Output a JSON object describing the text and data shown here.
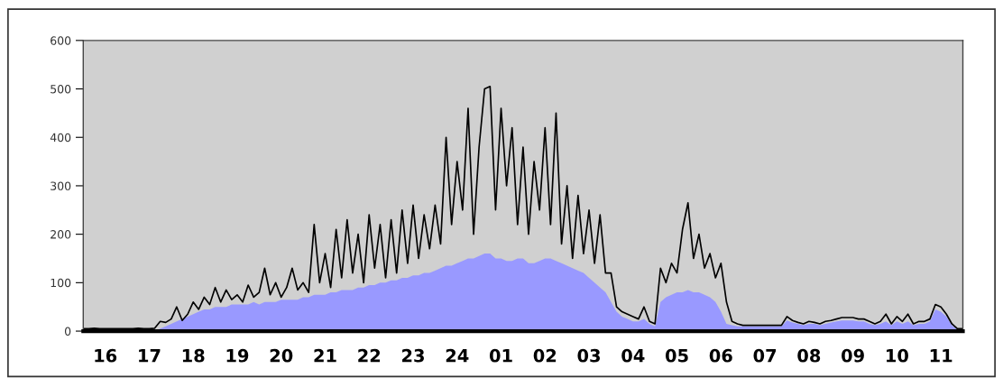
{
  "chart_data": {
    "type": "line",
    "categories": [
      null,
      null,
      null,
      null,
      "16",
      null,
      null,
      null,
      null,
      null,
      null,
      null,
      "17",
      null,
      null,
      null,
      null,
      null,
      null,
      null,
      "18",
      null,
      null,
      null,
      null,
      null,
      null,
      null,
      "19",
      null,
      null,
      null,
      null,
      null,
      null,
      null,
      "20",
      null,
      null,
      null,
      null,
      null,
      null,
      null,
      "21",
      null,
      null,
      null,
      null,
      null,
      null,
      null,
      "22",
      null,
      null,
      null,
      null,
      null,
      null,
      null,
      "23",
      null,
      null,
      null,
      null,
      null,
      null,
      null,
      "24",
      null,
      null,
      null,
      null,
      null,
      null,
      null,
      "01",
      null,
      null,
      null,
      null,
      null,
      null,
      null,
      "02",
      null,
      null,
      null,
      null,
      null,
      null,
      null,
      "03",
      null,
      null,
      null,
      null,
      null,
      null,
      null,
      "04",
      null,
      null,
      null,
      null,
      null,
      null,
      null,
      "05",
      null,
      null,
      null,
      null,
      null,
      null,
      null,
      "06",
      null,
      null,
      null,
      null,
      null,
      null,
      null,
      "07",
      null,
      null,
      null,
      null,
      null,
      null,
      null,
      "08",
      null,
      null,
      null,
      null,
      null,
      null,
      null,
      "09",
      null,
      null,
      null,
      null,
      null,
      null,
      null,
      "10",
      null,
      null,
      null,
      null,
      null,
      null,
      null,
      "11",
      null,
      null,
      null,
      null
    ],
    "series": [
      {
        "type": "area",
        "color": "#9999ff",
        "values": [
          0,
          0,
          0,
          0,
          0,
          0,
          0,
          0,
          0,
          0,
          0,
          0,
          0,
          0,
          5,
          10,
          15,
          20,
          25,
          30,
          35,
          40,
          45,
          45,
          50,
          50,
          50,
          55,
          55,
          55,
          55,
          60,
          55,
          60,
          60,
          60,
          65,
          65,
          65,
          65,
          70,
          70,
          75,
          75,
          75,
          80,
          80,
          85,
          85,
          85,
          90,
          90,
          95,
          95,
          100,
          100,
          105,
          105,
          110,
          110,
          115,
          115,
          120,
          120,
          125,
          130,
          135,
          135,
          140,
          145,
          150,
          150,
          155,
          160,
          160,
          150,
          150,
          145,
          145,
          150,
          150,
          140,
          140,
          145,
          150,
          150,
          145,
          140,
          135,
          130,
          125,
          120,
          110,
          100,
          90,
          80,
          60,
          40,
          30,
          25,
          20,
          20,
          25,
          15,
          10,
          60,
          70,
          75,
          80,
          80,
          85,
          80,
          80,
          75,
          70,
          60,
          40,
          15,
          12,
          10,
          10,
          10,
          10,
          10,
          10,
          10,
          10,
          10,
          22,
          18,
          15,
          12,
          15,
          15,
          12,
          15,
          18,
          20,
          22,
          22,
          22,
          20,
          20,
          15,
          12,
          15,
          20,
          12,
          20,
          15,
          20,
          12,
          15,
          15,
          20,
          45,
          40,
          30,
          12,
          3,
          3
        ]
      },
      {
        "color": "#000000",
        "values": [
          5,
          5,
          6,
          5,
          5,
          5,
          5,
          5,
          5,
          5,
          6,
          5,
          5,
          6,
          20,
          18,
          25,
          50,
          22,
          35,
          60,
          45,
          70,
          55,
          90,
          60,
          85,
          65,
          75,
          60,
          95,
          70,
          80,
          130,
          75,
          100,
          70,
          90,
          130,
          85,
          100,
          80,
          220,
          100,
          160,
          90,
          210,
          110,
          230,
          120,
          200,
          100,
          240,
          130,
          220,
          110,
          230,
          120,
          250,
          140,
          260,
          150,
          240,
          170,
          260,
          180,
          400,
          220,
          350,
          250,
          460,
          200,
          380,
          500,
          505,
          250,
          460,
          300,
          420,
          220,
          380,
          200,
          350,
          250,
          420,
          220,
          450,
          180,
          300,
          150,
          280,
          160,
          250,
          140,
          240,
          120,
          120,
          50,
          40,
          35,
          30,
          25,
          50,
          20,
          15,
          130,
          100,
          140,
          120,
          210,
          265,
          150,
          200,
          130,
          160,
          110,
          140,
          60,
          20,
          15,
          12,
          12,
          12,
          12,
          12,
          12,
          12,
          12,
          30,
          22,
          18,
          15,
          20,
          18,
          15,
          20,
          22,
          25,
          28,
          28,
          28,
          25,
          25,
          20,
          15,
          20,
          35,
          15,
          30,
          20,
          35,
          15,
          20,
          20,
          25,
          55,
          50,
          35,
          15,
          5,
          5
        ]
      }
    ],
    "ylim": [
      0,
      600
    ],
    "yticks": [
      0,
      100,
      200,
      300,
      400,
      500,
      600
    ],
    "grid": false,
    "legend": false
  }
}
